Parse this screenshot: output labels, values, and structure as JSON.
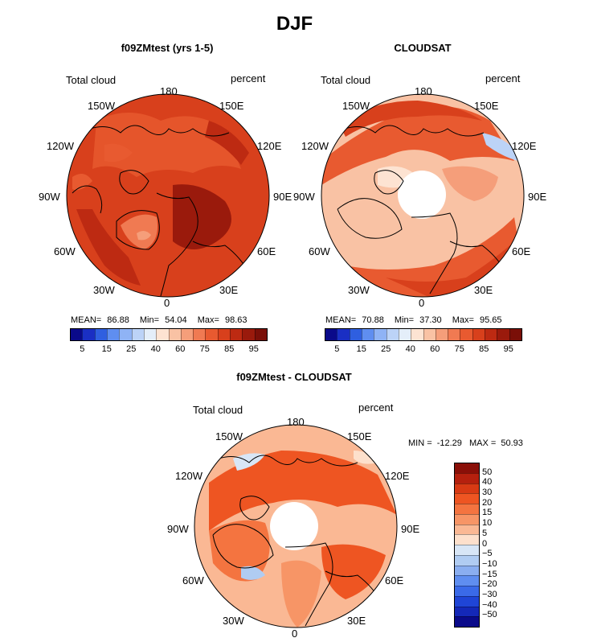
{
  "figure": {
    "season": "DJF"
  },
  "chart_data": [
    {
      "type": "heatmap",
      "projection": "north polar stereographic",
      "title": "f09ZMtest (yrs 1-5)",
      "left_label": "Total cloud",
      "right_label": "percent",
      "lon_labels": [
        "180",
        "150E",
        "120E",
        "90E",
        "60E",
        "30E",
        "0",
        "30W",
        "60W",
        "90W",
        "120W",
        "150W"
      ],
      "stats": {
        "mean_label": "MEAN=",
        "mean": "86.88",
        "min_label": "Min=",
        "min": "54.04",
        "max_label": "Max=",
        "max": "98.63"
      },
      "colorbar": {
        "orientation": "horizontal",
        "tick_labels": [
          "5",
          "15",
          "25",
          "40",
          "60",
          "75",
          "85",
          "95"
        ],
        "colors": [
          "#0a0a8a",
          "#1a2fc4",
          "#2f5fe0",
          "#5f8ef0",
          "#8fb3f5",
          "#bcd3f7",
          "#e4eef9",
          "#fde3d2",
          "#f9c2a4",
          "#f59e7a",
          "#f07a52",
          "#e85a30",
          "#d8401c",
          "#bd2a12",
          "#9a1a0c",
          "#7a0f08"
        ]
      }
    },
    {
      "type": "heatmap",
      "projection": "north polar stereographic",
      "title": "CLOUDSAT",
      "left_label": "Total cloud",
      "right_label": "percent",
      "lon_labels": [
        "180",
        "150E",
        "120E",
        "90E",
        "60E",
        "30E",
        "0",
        "30W",
        "60W",
        "90W",
        "120W",
        "150W"
      ],
      "stats": {
        "mean_label": "MEAN=",
        "mean": "70.88",
        "min_label": "Min=",
        "min": "37.30",
        "max_label": "Max=",
        "max": "95.65"
      },
      "colorbar": {
        "orientation": "horizontal",
        "tick_labels": [
          "5",
          "15",
          "25",
          "40",
          "60",
          "75",
          "85",
          "95"
        ],
        "colors": [
          "#0a0a8a",
          "#1a2fc4",
          "#2f5fe0",
          "#5f8ef0",
          "#8fb3f5",
          "#bcd3f7",
          "#e4eef9",
          "#fde3d2",
          "#f9c2a4",
          "#f59e7a",
          "#f07a52",
          "#e85a30",
          "#d8401c",
          "#bd2a12",
          "#9a1a0c",
          "#7a0f08"
        ]
      }
    },
    {
      "type": "heatmap",
      "projection": "north polar stereographic",
      "title": "f09ZMtest - CLOUDSAT",
      "left_label": "Total cloud",
      "right_label": "percent",
      "lon_labels": [
        "180",
        "150E",
        "120E",
        "90E",
        "60E",
        "30E",
        "0",
        "30W",
        "60W",
        "90W",
        "120W",
        "150W"
      ],
      "stats": {
        "min_label": "MIN =",
        "min": "-12.29",
        "max_label": "MAX =",
        "max": "50.93"
      },
      "colorbar": {
        "orientation": "vertical",
        "tick_labels": [
          "50",
          "40",
          "30",
          "20",
          "15",
          "10",
          "5",
          "0",
          "−5",
          "−10",
          "−15",
          "−20",
          "−30",
          "−40",
          "−50"
        ],
        "colors": [
          "#8a0f08",
          "#b5200e",
          "#d83a14",
          "#ee5522",
          "#f47440",
          "#f79566",
          "#fab894",
          "#fde0cc",
          "#d8e6f6",
          "#b0ccf2",
          "#8aaef0",
          "#5f8ef0",
          "#3a6ae8",
          "#1f45d6",
          "#1428b8",
          "#0a0a8a"
        ]
      }
    }
  ]
}
